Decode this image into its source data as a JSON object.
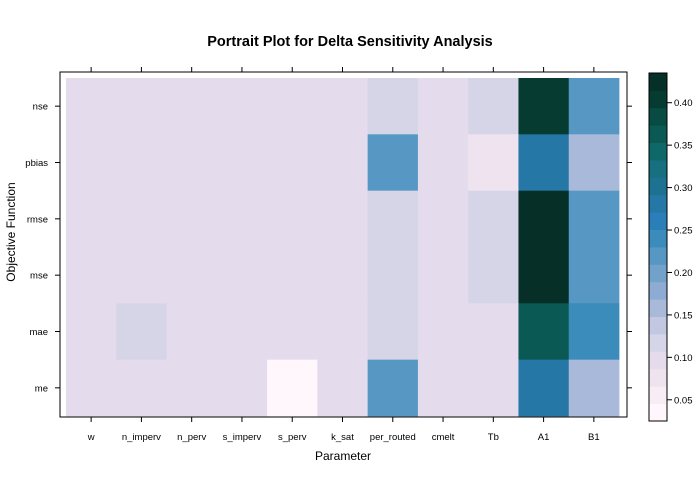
{
  "chart_data": {
    "type": "heatmap",
    "title": "Portrait Plot for Delta Sensitivity Analysis",
    "xlabel": "Parameter",
    "ylabel": "Objective Function",
    "x_categories": [
      "w",
      "n_imperv",
      "n_perv",
      "s_imperv",
      "s_perv",
      "k_sat",
      "per_routed",
      "cmelt",
      "Tb",
      "A1",
      "B1"
    ],
    "y_categories": [
      "nse",
      "pbias",
      "rmse",
      "mse",
      "mae",
      "me"
    ],
    "values": [
      [
        0.09,
        0.09,
        0.09,
        0.09,
        0.09,
        0.09,
        0.11,
        0.09,
        0.11,
        0.41,
        0.22
      ],
      [
        0.09,
        0.09,
        0.09,
        0.09,
        0.09,
        0.09,
        0.22,
        0.09,
        0.07,
        0.28,
        0.15
      ],
      [
        0.09,
        0.09,
        0.09,
        0.09,
        0.09,
        0.09,
        0.11,
        0.09,
        0.11,
        0.43,
        0.22
      ],
      [
        0.09,
        0.09,
        0.09,
        0.09,
        0.09,
        0.09,
        0.11,
        0.09,
        0.11,
        0.43,
        0.22
      ],
      [
        0.09,
        0.11,
        0.09,
        0.09,
        0.09,
        0.09,
        0.11,
        0.09,
        0.09,
        0.37,
        0.25
      ],
      [
        0.09,
        0.09,
        0.09,
        0.09,
        0.03,
        0.09,
        0.22,
        0.09,
        0.09,
        0.28,
        0.15
      ]
    ],
    "colorbar": {
      "ticks": [
        0.05,
        0.1,
        0.15,
        0.2,
        0.25,
        0.3,
        0.35,
        0.4
      ],
      "tick_labels": [
        "0.05",
        "0.10",
        "0.15",
        "0.20",
        "0.25",
        "0.30",
        "0.35",
        "0.40"
      ],
      "range": [
        0.025,
        0.435
      ],
      "colors": [
        "#fff7fb",
        "#f8ecf5",
        "#efe3f0",
        "#e4dbec",
        "#d6d5e8",
        "#c2c8e1",
        "#a9b9da",
        "#8eacd3",
        "#72a2ca",
        "#5697c3",
        "#3b8bbb",
        "#2b7fb8",
        "#2577a6",
        "#1d7292",
        "#167080",
        "#0e6769",
        "#0a5954",
        "#074b43",
        "#063b31",
        "#052f27"
      ]
    },
    "grid": false,
    "legend": "right colorbar"
  }
}
